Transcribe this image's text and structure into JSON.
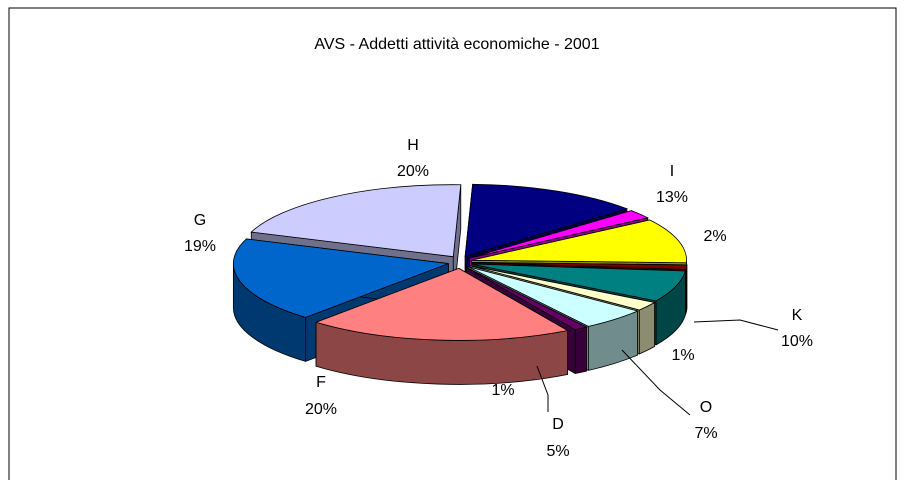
{
  "chart_data": {
    "type": "pie",
    "title": "AVS - Addetti attività economiche - 2001",
    "categories": [
      "I",
      null,
      "K",
      null,
      "O",
      null,
      "D",
      null,
      "F",
      "G",
      "H"
    ],
    "values": [
      13,
      2,
      10,
      1,
      7,
      2,
      5,
      1,
      20,
      19,
      20
    ],
    "value_labels": [
      "13%",
      "2%",
      "10%",
      "1%",
      "7%",
      null,
      "5%",
      "1%",
      "20%",
      "19%",
      "20%"
    ],
    "colors": [
      "#000080",
      "#FF00FF",
      "#FFFF00",
      "#800000",
      "#008080",
      "#FFFFCC",
      "#CCFFFF",
      "#660066",
      "#FF8080",
      "#0066CC",
      "#CCCCFF"
    ],
    "three_d": true,
    "exploded": true
  }
}
